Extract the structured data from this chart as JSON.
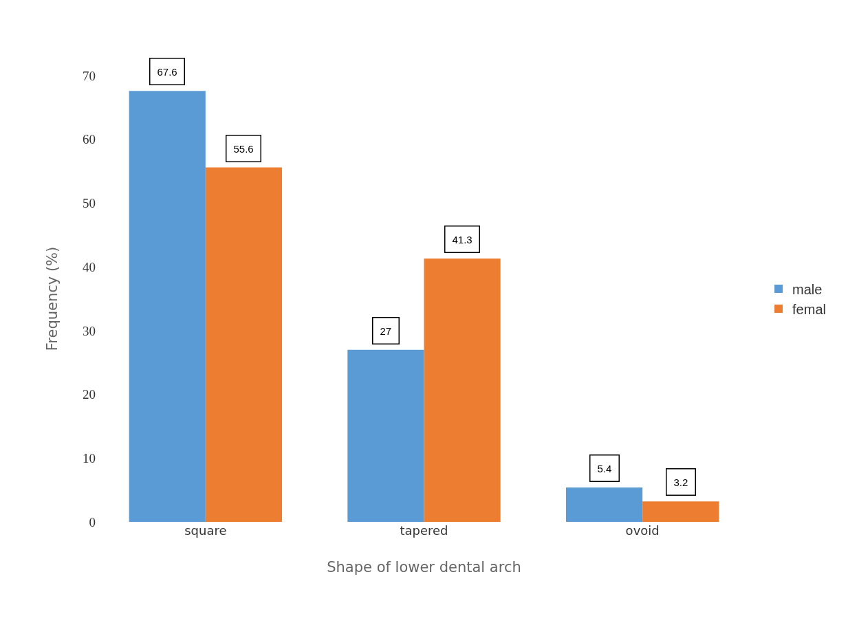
{
  "chart_data": {
    "type": "bar",
    "xlabel": "Shape of lower dental arch",
    "ylabel": "Frequency (%)",
    "categories": [
      "square",
      "tapered",
      "ovoid"
    ],
    "series": [
      {
        "name": "male",
        "color": "#5b9bd5",
        "values": [
          67.6,
          27,
          5.4
        ]
      },
      {
        "name": "femal",
        "color": "#ed7d31",
        "values": [
          55.6,
          41.3,
          3.2
        ]
      }
    ],
    "ylim": [
      0,
      70
    ],
    "yticks": [
      0,
      10,
      20,
      30,
      40,
      50,
      60,
      70
    ],
    "grid": false,
    "legend": "right",
    "data_labels": true
  }
}
